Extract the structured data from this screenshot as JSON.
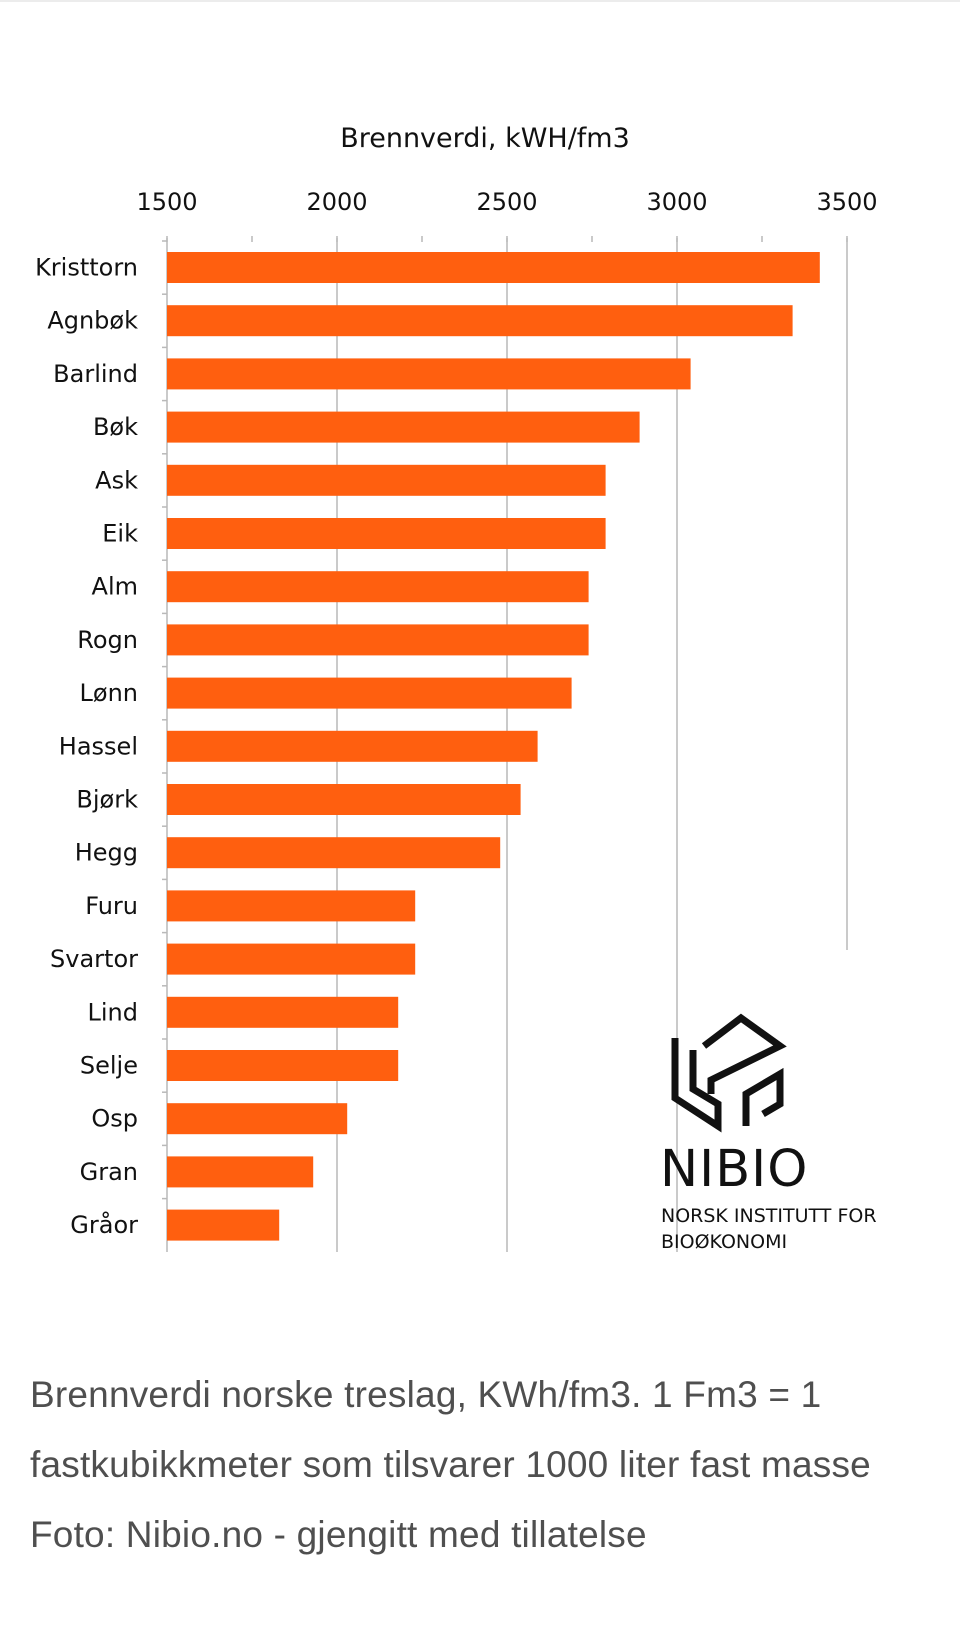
{
  "chart_data": {
    "type": "bar",
    "orientation": "horizontal",
    "title": "Brennverdi, kWH/fm3",
    "xlim": [
      1500,
      3500
    ],
    "xticks": [
      1500,
      2000,
      2500,
      3000,
      3500
    ],
    "categories": [
      "Kristtorn",
      "Agnbøk",
      "Barlind",
      "Bøk",
      "Ask",
      "Eik",
      "Alm",
      "Rogn",
      "Lønn",
      "Hassel",
      "Bjørk",
      "Hegg",
      "Furu",
      "Svartor",
      "Lind",
      "Selje",
      "Osp",
      "Gran",
      "Gråor"
    ],
    "values": [
      3420,
      3340,
      3040,
      2890,
      2790,
      2790,
      2740,
      2740,
      2690,
      2590,
      2540,
      2480,
      2230,
      2230,
      2180,
      2180,
      2030,
      1930,
      1830
    ],
    "bar_color": "#ff5f0f"
  },
  "logo": {
    "name": "NIBIO",
    "subtitle_line1": "NORSK INSTITUTT FOR",
    "subtitle_line2": "BIOØKONOMI"
  },
  "caption": "Brennverdi norske treslag, KWh/fm3. 1 Fm3 = 1 fastkubikkmeter som tilsvarer 1000 liter fast masse Foto: Nibio.no - gjengitt med tillatelse"
}
